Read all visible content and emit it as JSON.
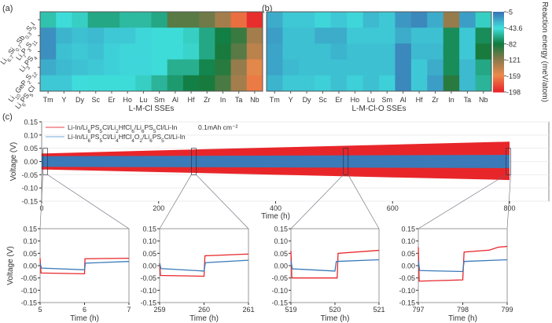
{
  "chart_data": [
    {
      "panel": "(a)",
      "type": "heatmap",
      "xlabel": "L-M-Cl SSEs",
      "columns": [
        "Tm",
        "Y",
        "Dy",
        "Sc",
        "Er",
        "Ho",
        "Lu",
        "Sm",
        "Al",
        "Hf",
        "Zr",
        "In",
        "Ta",
        "Nb"
      ],
      "rows": [
        "Li6.7Si0.7Sb0.3S5I",
        "Li7P3S11",
        "Li3PS4",
        "Li10GeP2S12",
        "Li6PS5Cl"
      ],
      "values": [
        [
          -55,
          -45,
          -50,
          -65,
          -65,
          -58,
          -58,
          -65,
          -105,
          -105,
          -112,
          -130,
          -170,
          -195
        ],
        [
          -15,
          -28,
          -32,
          -30,
          -35,
          -35,
          -40,
          -45,
          -45,
          -50,
          -65,
          -80,
          -95,
          -130
        ],
        [
          -15,
          -32,
          -35,
          -32,
          -38,
          -40,
          -40,
          -45,
          -45,
          -48,
          -65,
          -85,
          -105,
          -140
        ],
        [
          -25,
          -30,
          -33,
          -35,
          -38,
          -40,
          -40,
          -45,
          -62,
          -62,
          -78,
          -90,
          -125,
          -155
        ],
        [
          -35,
          -35,
          -42,
          -45,
          -45,
          -45,
          -50,
          -60,
          -70,
          -80,
          -85,
          -100,
          -130,
          -165
        ]
      ]
    },
    {
      "panel": "(b)",
      "type": "heatmap",
      "xlabel": "L-M-Cl-O SSEs",
      "columns": [
        "Tm",
        "Y",
        "Dy",
        "Sc",
        "Er",
        "Ho",
        "Lu",
        "Sm",
        "Al",
        "Hf",
        "Zr",
        "In",
        "Ta",
        "Nb"
      ],
      "rows": [
        "Li6.7Si0.7Sb0.3S5I",
        "Li7P3S11",
        "Li3PS4",
        "Li10GeP2S12",
        "Li6PS5Cl"
      ],
      "values": [
        [
          -25,
          -35,
          -35,
          -40,
          -35,
          -40,
          -30,
          -35,
          -18,
          -12,
          -25,
          -125,
          -20,
          -50
        ],
        [
          -20,
          -32,
          -32,
          -25,
          -25,
          -35,
          -35,
          -35,
          -25,
          -32,
          -32,
          -75,
          -35,
          -75
        ],
        [
          -22,
          -32,
          -32,
          -32,
          -28,
          -32,
          -32,
          -32,
          -12,
          -30,
          -30,
          -75,
          -35,
          -85
        ],
        [
          -22,
          -30,
          -32,
          -32,
          -32,
          -32,
          -32,
          -32,
          -12,
          -35,
          -25,
          -75,
          -30,
          -65
        ],
        [
          -28,
          -35,
          -35,
          -38,
          -32,
          -38,
          -32,
          -38,
          -12,
          -35,
          -20,
          -90,
          -30,
          -60
        ]
      ]
    },
    {
      "panel": "colorbar",
      "type": "colorbar",
      "title": "Reaction energy (meV/atom)",
      "ticks": [
        "-5",
        "-43.6",
        "-82",
        "-121",
        "-159",
        "-198"
      ],
      "range": [
        -198,
        -5
      ],
      "stops": [
        {
          "v": -5,
          "color": "#3a74b6"
        },
        {
          "v": -43.6,
          "color": "#3fe0de"
        },
        {
          "v": -82,
          "color": "#0f7a3c"
        },
        {
          "v": -121,
          "color": "#8c7a4c"
        },
        {
          "v": -159,
          "color": "#ec8a4a"
        },
        {
          "v": -198,
          "color": "#e8262a"
        }
      ]
    },
    {
      "panel": "(c)",
      "type": "line",
      "xlabel": "Time (h)",
      "ylabel": "Voltage (V)",
      "xlim": [
        0,
        800
      ],
      "ylim": [
        -0.15,
        0.15
      ],
      "xticks": [
        "0",
        "200",
        "400",
        "600",
        "800"
      ],
      "yticks": [
        "0.15",
        "0.10",
        "0.05",
        "0.00",
        "-0.05",
        "-0.10",
        "-0.15"
      ],
      "annotation": "0.1mAh cm⁻²",
      "series": [
        {
          "name": "Li-In/Li6PS5Cl/Li2HfCl6/Li6PS5Cl/Li-In",
          "color": "#e8262a",
          "legend_color": "#f4a0a4",
          "envelope": [
            [
              0,
              0.03,
              -0.03
            ],
            [
              200,
              0.042,
              -0.04
            ],
            [
              400,
              0.053,
              -0.05
            ],
            [
              600,
              0.064,
              -0.06
            ],
            [
              800,
              0.075,
              -0.07
            ]
          ]
        },
        {
          "name": "Li-In/Li6PS5Cl/Li4HfCl4O2/Li6PS5Cl/Li-In",
          "color": "#3a7ab8",
          "legend_color": "#b8d4ea",
          "envelope": [
            [
              0,
              0.02,
              -0.02
            ],
            [
              800,
              0.025,
              -0.025
            ]
          ]
        }
      ],
      "zoom_windows": [
        [
          5,
          7
        ],
        [
          259,
          261
        ],
        [
          519,
          521
        ],
        [
          797,
          799
        ]
      ]
    },
    {
      "type": "insets",
      "xlabel": "Time (h)",
      "ylabel": "Voltage (V)",
      "ylim": [
        -0.15,
        0.15
      ],
      "yticks": [
        "0.15",
        "0.10",
        "0.05",
        "0.00",
        "-0.05",
        "-0.10",
        "-0.15"
      ],
      "panels": [
        {
          "xlim": [
            5,
            7
          ],
          "xticks": [
            "5",
            "6",
            "7"
          ],
          "red": [
            [
              5,
              0.03
            ],
            [
              5.02,
              -0.03
            ],
            [
              6,
              -0.033
            ],
            [
              6.01,
              0.028
            ],
            [
              7,
              0.03
            ]
          ],
          "blue": [
            [
              5,
              0.01
            ],
            [
              5.03,
              -0.01
            ],
            [
              6,
              -0.017
            ],
            [
              6.02,
              0.01
            ],
            [
              7,
              0.017
            ]
          ]
        },
        {
          "xlim": [
            259,
            261
          ],
          "xticks": [
            "259",
            "260",
            "261"
          ],
          "red": [
            [
              259,
              0.01
            ],
            [
              259.02,
              -0.04
            ],
            [
              260,
              -0.043
            ],
            [
              260.02,
              0.04
            ],
            [
              261,
              0.047
            ]
          ],
          "blue": [
            [
              259,
              0.01
            ],
            [
              259.03,
              -0.012
            ],
            [
              260,
              -0.022
            ],
            [
              260.03,
              0.012
            ],
            [
              261,
              0.022
            ]
          ]
        },
        {
          "xlim": [
            519,
            521
          ],
          "xticks": [
            "519",
            "520",
            "521"
          ],
          "red": [
            [
              519,
              0.06
            ],
            [
              519.02,
              -0.05
            ],
            [
              520.05,
              -0.05
            ],
            [
              520.07,
              0.05
            ],
            [
              521,
              0.062
            ]
          ],
          "blue": [
            [
              519,
              0.02
            ],
            [
              519.03,
              -0.013
            ],
            [
              520,
              -0.022
            ],
            [
              520.03,
              0.017
            ],
            [
              521,
              0.024
            ]
          ]
        },
        {
          "xlim": [
            797,
            799
          ],
          "xticks": [
            "797",
            "798",
            "799"
          ],
          "red": [
            [
              797,
              0.075
            ],
            [
              797.02,
              -0.063
            ],
            [
              798,
              -0.058
            ],
            [
              798.03,
              0.055
            ],
            [
              798.6,
              0.063
            ],
            [
              798.8,
              0.075
            ],
            [
              799,
              0.078
            ]
          ],
          "blue": [
            [
              797,
              0.02
            ],
            [
              797.03,
              -0.02
            ],
            [
              798,
              -0.024
            ],
            [
              798.03,
              0.017
            ],
            [
              799,
              0.024
            ]
          ]
        }
      ]
    }
  ]
}
